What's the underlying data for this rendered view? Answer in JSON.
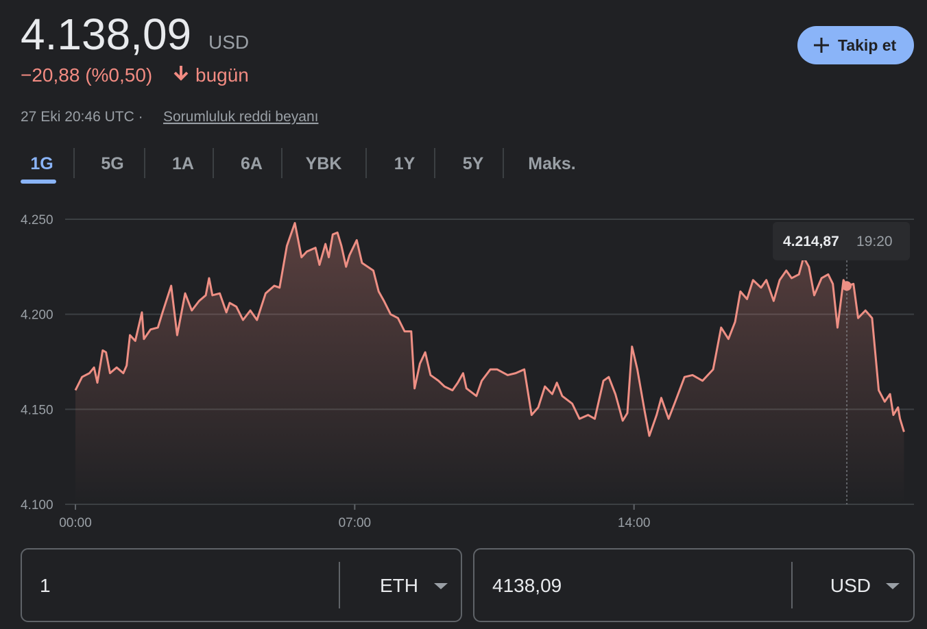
{
  "header": {
    "price": "4.138,09",
    "currency": "USD",
    "change": "−20,88 (%0,50)",
    "change_suffix": "bugün",
    "timestamp": "27 Eki 20:46 UTC ·",
    "disclaimer": "Sorumluluk reddi beyanı",
    "follow_button": "Takip et"
  },
  "tabs": {
    "items": [
      "1G",
      "5G",
      "1A",
      "6A",
      "YBK",
      "1Y",
      "5Y",
      "Maks."
    ],
    "active": 0
  },
  "chart_data": {
    "type": "line",
    "grid": true,
    "x": [
      0,
      10,
      21,
      28,
      33,
      41,
      46,
      52,
      62,
      72,
      77,
      82,
      90,
      100,
      103,
      113,
      124,
      131,
      144,
      153,
      165,
      175,
      186,
      196,
      201,
      206,
      217,
      227,
      232,
      242,
      252,
      263,
      273,
      286,
      299,
      307,
      318,
      330,
      340,
      348,
      361,
      367,
      376,
      381,
      387,
      394,
      400,
      407,
      412,
      423,
      431,
      448,
      456,
      464,
      474,
      485,
      495,
      505,
      510,
      518,
      526,
      534,
      546,
      555,
      567,
      575,
      583,
      588,
      603,
      611,
      624,
      634,
      650,
      662,
      675,
      686,
      696,
      706,
      717,
      724,
      732,
      747,
      758,
      771,
      781,
      794,
      802,
      812,
      823,
      830,
      837,
      845,
      856,
      863,
      874,
      881,
      892,
      902,
      916,
      928,
      943,
      959,
      971,
      982,
      992,
      1000,
      1010,
      1019,
      1031,
      1039,
      1050,
      1059,
      1069,
      1077,
      1088,
      1095,
      1103,
      1111,
      1122,
      1132,
      1139,
      1146,
      1155,
      1160,
      1170,
      1177,
      1188,
      1198,
      1208,
      1217,
      1225,
      1230,
      1237,
      1240,
      1246
    ],
    "series": [
      {
        "color": "#ee8f84",
        "values": [
          4160,
          4167,
          4169,
          4172,
          4164,
          4181,
          4180,
          4169,
          4172,
          4169,
          4173,
          4189,
          4186,
          4201,
          4187,
          4192,
          4193,
          4201,
          4215,
          4189,
          4211,
          4202,
          4207,
          4210,
          4219,
          4210,
          4211,
          4201,
          4206,
          4204,
          4197,
          4202,
          4197,
          4211,
          4215,
          4214,
          4236,
          4248,
          4230,
          4233,
          4235,
          4226,
          4237,
          4230,
          4242,
          4243,
          4236,
          4225,
          4231,
          4239,
          4227,
          4223,
          4212,
          4207,
          4200,
          4198,
          4191,
          4191,
          4161,
          4174,
          4180,
          4168,
          4165,
          4162,
          4160,
          4164,
          4169,
          4161,
          4157,
          4165,
          4171,
          4171,
          4168,
          4169,
          4171,
          4147,
          4151,
          4162,
          4158,
          4164,
          4157,
          4153,
          4145,
          4147,
          4145,
          4165,
          4167,
          4158,
          4144,
          4148,
          4183,
          4171,
          4149,
          4136,
          4147,
          4156,
          4145,
          4154,
          4167,
          4168,
          4165,
          4171,
          4193,
          4187,
          4196,
          4212,
          4208,
          4218,
          4214,
          4218,
          4207,
          4218,
          4223,
          4219,
          4221,
          4230,
          4225,
          4210,
          4219,
          4221,
          4216,
          4193,
          4218,
          4214.87,
          4216,
          4198,
          4202,
          4198,
          4160,
          4154,
          4158,
          4147,
          4151,
          4145,
          4138.09
        ]
      }
    ],
    "xlim": [
      0,
      1261
    ],
    "xticks": [
      {
        "value": 0,
        "label": "00:00"
      },
      {
        "value": 420,
        "label": "07:00"
      },
      {
        "value": 840,
        "label": "14:00"
      }
    ],
    "ylim": [
      4100,
      4250
    ],
    "yticks": [
      {
        "value": 4100,
        "label": "4.100"
      },
      {
        "value": 4150,
        "label": "4.150"
      },
      {
        "value": 4200,
        "label": "4.200"
      },
      {
        "value": 4250,
        "label": "4.250"
      }
    ],
    "tooltip": {
      "x": 1160,
      "value": 4214.87,
      "value_label": "4.214,87",
      "time_label": "19:20"
    }
  },
  "converter": {
    "amount": "1",
    "from": "ETH",
    "result": "4138,09",
    "to": "USD"
  }
}
